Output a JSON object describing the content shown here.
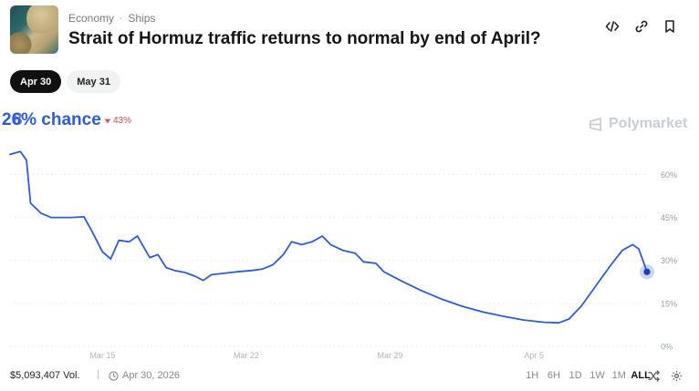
{
  "header": {
    "category": "Economy",
    "subcategory": "Ships",
    "title": "Strait of Hormuz traffic returns to normal by end of April?",
    "icons": [
      "embed-code-icon",
      "link-icon",
      "bookmark-icon"
    ]
  },
  "outcome_tabs": [
    {
      "label": "Apr 30",
      "selected": true
    },
    {
      "label": "May 31",
      "selected": false
    }
  ],
  "summary": {
    "chance_main": "26% chance",
    "chance_overlay": "8",
    "delta": "43%",
    "delta_direction": "down",
    "delta_color": "#e04848",
    "accent_color": "#2f5bd8",
    "brand": "Polymarket"
  },
  "chart_data": {
    "type": "line",
    "x_tick_labels": [
      "Mar 15",
      "Mar 22",
      "Mar 29",
      "Apr 5"
    ],
    "y_tick_labels": [
      "60%",
      "45%",
      "30%",
      "15%",
      "0%"
    ],
    "ylim": [
      0,
      70
    ],
    "y_ticks": [
      0,
      15,
      30,
      45,
      60
    ],
    "x_days_range": [
      0,
      31
    ],
    "x_ticks_days": [
      4.5,
      11.5,
      18.5,
      25.5
    ],
    "grid": "horizontal-dotted",
    "series": [
      {
        "color": "#2f5bd8",
        "points": [
          [
            0,
            67
          ],
          [
            0.5,
            68
          ],
          [
            0.8,
            65
          ],
          [
            1.0,
            50
          ],
          [
            1.5,
            46.5
          ],
          [
            2.0,
            45
          ],
          [
            3.0,
            45
          ],
          [
            3.6,
            45.2
          ],
          [
            4.0,
            40
          ],
          [
            4.5,
            33
          ],
          [
            4.9,
            30.5
          ],
          [
            5.3,
            37
          ],
          [
            5.8,
            36.5
          ],
          [
            6.2,
            38.5
          ],
          [
            6.4,
            36
          ],
          [
            6.8,
            31
          ],
          [
            7.2,
            32
          ],
          [
            7.6,
            27.5
          ],
          [
            8.0,
            26.5
          ],
          [
            8.5,
            25.8
          ],
          [
            9.0,
            24.5
          ],
          [
            9.4,
            23
          ],
          [
            9.8,
            25
          ],
          [
            10.4,
            25.5
          ],
          [
            11.0,
            26
          ],
          [
            11.8,
            26.5
          ],
          [
            12.3,
            27
          ],
          [
            12.8,
            28.5
          ],
          [
            13.3,
            32
          ],
          [
            13.7,
            36.5
          ],
          [
            14.2,
            35.5
          ],
          [
            14.7,
            36.5
          ],
          [
            15.2,
            38.5
          ],
          [
            15.6,
            35.5
          ],
          [
            16.2,
            33.5
          ],
          [
            16.8,
            32.5
          ],
          [
            17.2,
            29.5
          ],
          [
            17.8,
            29
          ],
          [
            18.2,
            26
          ],
          [
            19.0,
            23
          ],
          [
            20.0,
            19.5
          ],
          [
            21.0,
            16.5
          ],
          [
            22.0,
            14
          ],
          [
            23.0,
            12
          ],
          [
            24.0,
            10.5
          ],
          [
            25.0,
            9.2
          ],
          [
            26.0,
            8.4
          ],
          [
            26.7,
            8.2
          ],
          [
            27.2,
            9.5
          ],
          [
            27.8,
            14
          ],
          [
            28.5,
            21
          ],
          [
            29.2,
            28
          ],
          [
            29.8,
            33.5
          ],
          [
            30.3,
            35.5
          ],
          [
            30.6,
            34
          ],
          [
            31.0,
            26
          ]
        ],
        "last_value": 26
      }
    ]
  },
  "footer": {
    "volume": "$5,093,407 Vol.",
    "end_date": "Apr 30, 2026",
    "ranges": [
      "1H",
      "6H",
      "1D",
      "1W",
      "1M",
      "ALL"
    ],
    "active_range": "ALL"
  }
}
